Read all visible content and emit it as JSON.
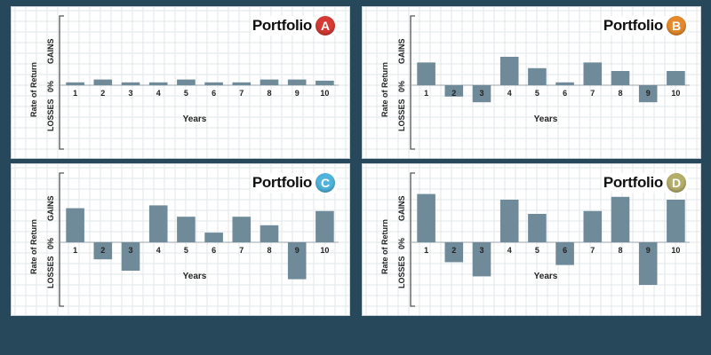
{
  "colors": {
    "background": "#27485a",
    "bar": "#6f8a98",
    "grid": "#e2e7ea",
    "axis": "#555555"
  },
  "chart_data": [
    {
      "type": "bar",
      "title_word": "Portfolio",
      "badge": "A",
      "badge_color": "#d63a34",
      "categories": [
        "1",
        "2",
        "3",
        "4",
        "5",
        "6",
        "7",
        "8",
        "9",
        "10"
      ],
      "values": [
        0.5,
        1,
        0.5,
        0.5,
        1,
        0.5,
        0.5,
        1,
        1,
        0.8
      ],
      "xlabel": "Years",
      "ylabel": "Rate of Return",
      "zero_label": "0%",
      "gains_label": "GAINS",
      "losses_label": "LOSSES",
      "ylim": [
        -10,
        10
      ],
      "grid": true
    },
    {
      "type": "bar",
      "title_word": "Portfolio",
      "badge": "B",
      "badge_color": "#e58a2c",
      "categories": [
        "1",
        "2",
        "3",
        "4",
        "5",
        "6",
        "7",
        "8",
        "9",
        "10"
      ],
      "values": [
        4,
        -2,
        -3,
        5,
        3,
        0.5,
        4,
        2.5,
        -3,
        2.5
      ],
      "xlabel": "Years",
      "ylabel": "Rate of Return",
      "zero_label": "0%",
      "gains_label": "GAINS",
      "losses_label": "LOSSES",
      "ylim": [
        -10,
        10
      ],
      "grid": true
    },
    {
      "type": "bar",
      "title_word": "Portfolio",
      "badge": "C",
      "badge_color": "#4fb3dc",
      "categories": [
        "1",
        "2",
        "3",
        "4",
        "5",
        "6",
        "7",
        "8",
        "9",
        "10"
      ],
      "values": [
        6,
        -3,
        -5,
        6.5,
        4.5,
        1.7,
        4.5,
        3,
        -6.5,
        5.5
      ],
      "xlabel": "Years",
      "ylabel": "Rate of Return",
      "zero_label": "0%",
      "gains_label": "GAINS",
      "losses_label": "LOSSES",
      "ylim": [
        -10,
        10
      ],
      "grid": true
    },
    {
      "type": "bar",
      "title_word": "Portfolio",
      "badge": "D",
      "badge_color": "#b5ad6a",
      "categories": [
        "1",
        "2",
        "3",
        "4",
        "5",
        "6",
        "7",
        "8",
        "9",
        "10"
      ],
      "values": [
        8.5,
        -3.5,
        -6,
        7.5,
        5,
        -4,
        5.5,
        8,
        -7.5,
        7.5
      ],
      "xlabel": "Years",
      "ylabel": "Rate of Return",
      "zero_label": "0%",
      "gains_label": "GAINS",
      "losses_label": "LOSSES",
      "ylim": [
        -10,
        10
      ],
      "grid": true
    }
  ]
}
